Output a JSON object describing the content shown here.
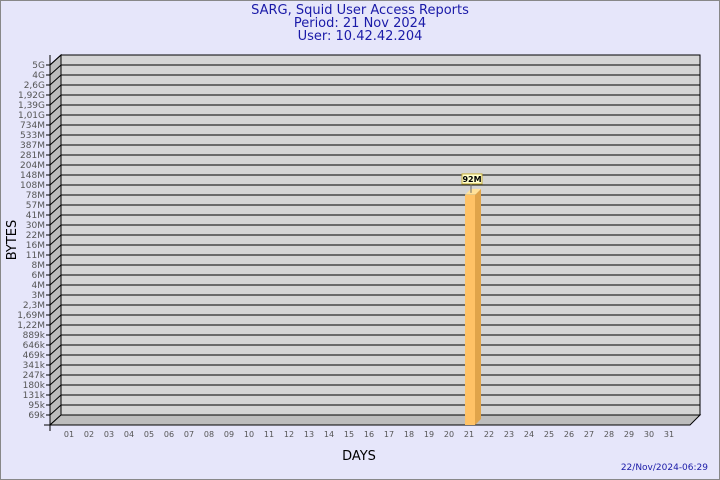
{
  "header": {
    "title": "SARG, Squid User Access Reports",
    "period": "Period: 21 Nov 2024",
    "user": "User: 10.42.42.204"
  },
  "footer": {
    "timestamp": "22/Nov/2024-06:29"
  },
  "colors": {
    "background": "#e6e6fa",
    "plot": "#d4d4d4",
    "bar_front": "#ffc266",
    "bar_side": "#e0a44a",
    "bar_top": "#ffe199",
    "title": "#1a1aa8"
  },
  "chart_data": {
    "type": "bar",
    "title": "SARG, Squid User Access Reports",
    "xlabel": "DAYS",
    "ylabel": "BYTES",
    "yscale": "log",
    "grid": true,
    "categories": [
      "01",
      "02",
      "03",
      "04",
      "05",
      "06",
      "07",
      "08",
      "09",
      "10",
      "11",
      "12",
      "13",
      "14",
      "15",
      "16",
      "17",
      "18",
      "19",
      "20",
      "21",
      "22",
      "23",
      "24",
      "25",
      "26",
      "27",
      "28",
      "29",
      "30",
      "31"
    ],
    "y_ticks": [
      {
        "label": "5G",
        "value": 5000000000
      },
      {
        "label": "4G",
        "value": 4000000000
      },
      {
        "label": "2,6G",
        "value": 2600000000
      },
      {
        "label": "1,92G",
        "value": 1920000000
      },
      {
        "label": "1,39G",
        "value": 1390000000
      },
      {
        "label": "1,01G",
        "value": 1010000000
      },
      {
        "label": "734M",
        "value": 734000000
      },
      {
        "label": "533M",
        "value": 533000000
      },
      {
        "label": "387M",
        "value": 387000000
      },
      {
        "label": "281M",
        "value": 281000000
      },
      {
        "label": "204M",
        "value": 204000000
      },
      {
        "label": "148M",
        "value": 148000000
      },
      {
        "label": "108M",
        "value": 108000000
      },
      {
        "label": "78M",
        "value": 78000000
      },
      {
        "label": "57M",
        "value": 57000000
      },
      {
        "label": "41M",
        "value": 41000000
      },
      {
        "label": "30M",
        "value": 30000000
      },
      {
        "label": "22M",
        "value": 22000000
      },
      {
        "label": "16M",
        "value": 16000000
      },
      {
        "label": "11M",
        "value": 11000000
      },
      {
        "label": "8M",
        "value": 8000000
      },
      {
        "label": "6M",
        "value": 6000000
      },
      {
        "label": "4M",
        "value": 4000000
      },
      {
        "label": "3M",
        "value": 3000000
      },
      {
        "label": "2,3M",
        "value": 2300000
      },
      {
        "label": "1,69M",
        "value": 1690000
      },
      {
        "label": "1,22M",
        "value": 1220000
      },
      {
        "label": "889k",
        "value": 889000
      },
      {
        "label": "646k",
        "value": 646000
      },
      {
        "label": "469k",
        "value": 469000
      },
      {
        "label": "341k",
        "value": 341000
      },
      {
        "label": "247k",
        "value": 247000
      },
      {
        "label": "180k",
        "value": 180000
      },
      {
        "label": "131k",
        "value": 131000
      },
      {
        "label": "95k",
        "value": 95000
      },
      {
        "label": "69k",
        "value": 69000
      }
    ],
    "bars": [
      {
        "day": "21",
        "value": 92000000,
        "label": "92M"
      }
    ]
  }
}
